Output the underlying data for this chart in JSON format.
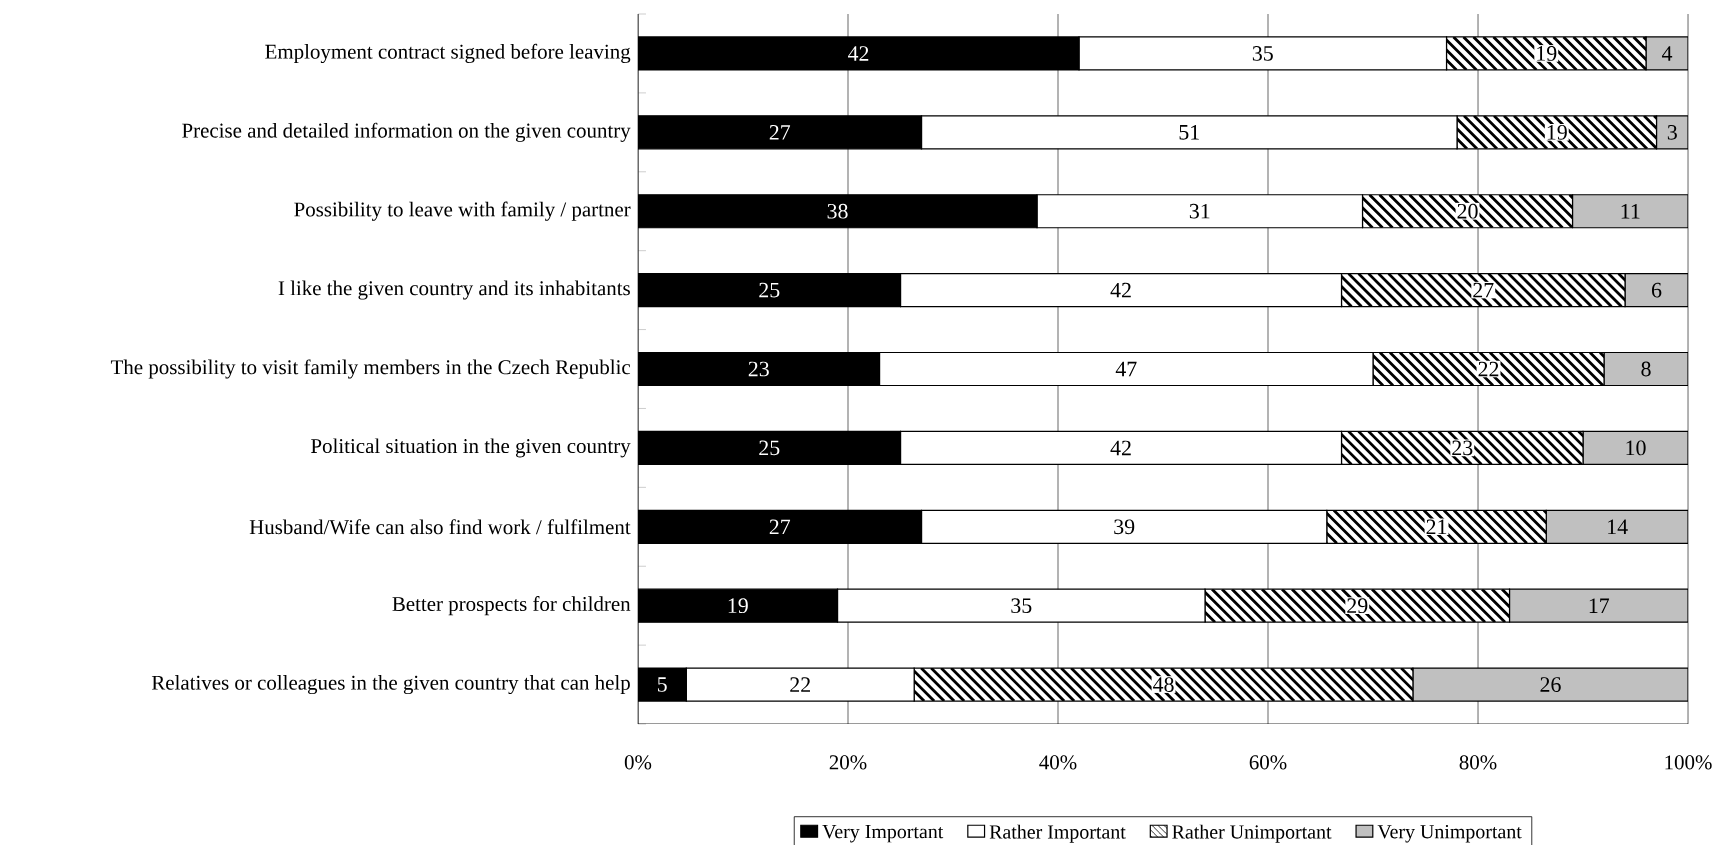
{
  "chart_data": {
    "type": "bar",
    "orientation": "horizontal",
    "stacked": true,
    "grid": "x",
    "legend": "bottom",
    "categories": [
      "Employment contract signed before leaving",
      "Precise and detailed information on the given country",
      "Possibility to leave with family / partner",
      "I like the given country and its inhabitants",
      "The possibility to visit family members in the Czech Republic",
      "Political situation in the given country",
      "Husband/Wife can also find work / fulfilment",
      "Better prospects for children",
      "Relatives or colleagues in the given country that can help"
    ],
    "series": [
      {
        "name": "Very Important",
        "color": "#000000",
        "values": [
          42,
          27,
          38,
          25,
          23,
          25,
          27,
          19,
          4.6
        ],
        "value_labels": [
          "42",
          "27",
          "38",
          "25",
          "23",
          "25",
          "27",
          "19",
          "5"
        ]
      },
      {
        "name": "Rather Important",
        "color": "#ffffff",
        "values": [
          35,
          51,
          31,
          42,
          47,
          42,
          38.6,
          35,
          21.7
        ],
        "value_labels": [
          "35",
          "51",
          "31",
          "42",
          "47",
          "42",
          "39",
          "35",
          "22"
        ]
      },
      {
        "name": "Rather Unimportant",
        "color": "#000000",
        "values": [
          19,
          19,
          20,
          27,
          22,
          23,
          20.9,
          29,
          47.5
        ],
        "value_labels": [
          "19",
          "19",
          "20",
          "27",
          "22",
          "23",
          "21",
          "29",
          "48"
        ]
      },
      {
        "name": "Very Unimportant",
        "color": "#c0c0c0",
        "values": [
          4,
          3,
          11,
          6,
          8,
          10,
          13.5,
          17,
          26.2
        ],
        "value_labels": [
          "4",
          "3",
          "11",
          "6",
          "8",
          "10",
          "14",
          "17",
          "26"
        ]
      }
    ],
    "xlim": [
      0,
      100
    ],
    "xticks": [
      {
        "value": 0,
        "label": "0%"
      },
      {
        "value": 20,
        "label": "20%"
      },
      {
        "value": 40,
        "label": "40%"
      },
      {
        "value": 60,
        "label": "60%"
      },
      {
        "value": 80,
        "label": "80%"
      },
      {
        "value": 100,
        "label": "100%"
      }
    ]
  }
}
